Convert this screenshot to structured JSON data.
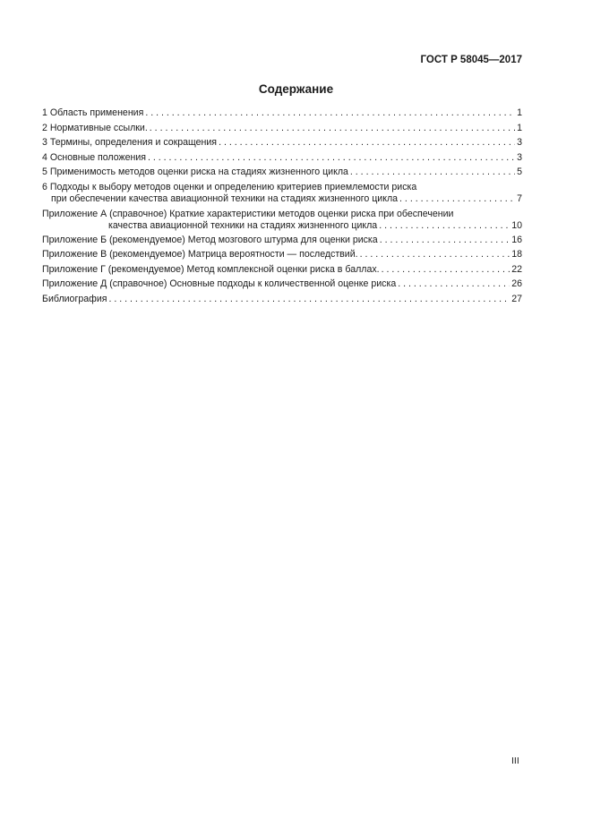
{
  "header": {
    "doc_number": "ГОСТ Р 58045—2017"
  },
  "title": "Содержание",
  "toc": [
    {
      "text": "1 Область применения",
      "page": "1"
    },
    {
      "text": "2 Нормативные ссылки.",
      "page": "1"
    },
    {
      "text": "3 Термины, определения и сокращения",
      "page": "3"
    },
    {
      "text": "4 Основные положения",
      "page": "3"
    },
    {
      "text": "5 Применимость методов оценки риска на стадиях жизненного цикла",
      "page": "5"
    },
    {
      "text1": "6 Подходы к выбору методов оценки и определению критериев приемлемости риска",
      "text2": "при обеспечении качества авиационной техники на стадиях жизненного цикла",
      "page": "7"
    },
    {
      "text1": "Приложение А (справочное) Краткие характеристики методов оценки риска при обеспечении",
      "text2": "качества авиационной техники на стадиях жизненного цикла",
      "page": "10"
    },
    {
      "text": "Приложение Б (рекомендуемое) Метод мозгового штурма для оценки риска",
      "page": "16"
    },
    {
      "text": "Приложение В (рекомендуемое) Матрица вероятности — последствий.",
      "page": "18"
    },
    {
      "text": "Приложение Г (рекомендуемое) Метод комплексной оценки риска в баллах.",
      "page": "22"
    },
    {
      "text": "Приложение Д (справочное) Основные подходы к количественной оценке риска",
      "page": "26"
    },
    {
      "text": "Библиография",
      "page": "27"
    }
  ],
  "page_number": "III"
}
